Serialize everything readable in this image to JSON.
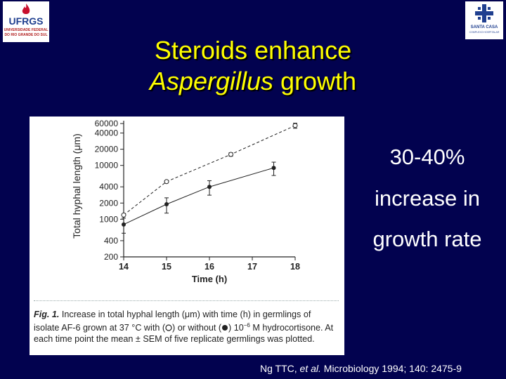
{
  "logos": {
    "left": {
      "name": "UFRGS",
      "line1": "UNIVERSIDADE FEDERAL",
      "line2": "DO RIO GRANDE DO SUL"
    },
    "right": {
      "name": "SANTA CASA",
      "sub": "COMPLEXO HOSPITALAR"
    }
  },
  "title": {
    "line1": "Steroids enhance",
    "line2_italic": "Aspergillus",
    "line2_rest": " growth"
  },
  "side_text": [
    "30-40%",
    "increase in",
    "growth rate"
  ],
  "citation": {
    "authors": "Ng TTC, ",
    "etal": "et al.",
    "rest": " Microbiology 1994; 140: 2475-9"
  },
  "caption": {
    "fig_label": "Fig. 1.",
    "text1": " Increase in total hyphal length (μm) with time (h) in germlings of isolate AF-6 grown at 37 °C with (",
    "text2": ") or without (",
    "text3": ") 10",
    "exp": "−6",
    "text4": " M hydrocortisone. At each time point the mean ± SEM of five replicate germlings was plotted."
  },
  "chart_data": {
    "type": "line",
    "xlabel": "Time (h)",
    "ylabel": "Total hyphal length (μm)",
    "xlim": [
      14,
      18
    ],
    "x_ticks": [
      "14",
      "15",
      "16",
      "17",
      "18"
    ],
    "y_scale": "log",
    "ylim": [
      200,
      60000
    ],
    "y_ticks": [
      {
        "value": 200,
        "label": "200"
      },
      {
        "value": 400,
        "label": "400"
      },
      {
        "value": 1000,
        "label": "1000"
      },
      {
        "value": 2000,
        "label": "2000"
      },
      {
        "value": 4000,
        "label": "4000"
      },
      {
        "value": 10000,
        "label": "10000"
      },
      {
        "value": 20000,
        "label": "20000"
      },
      {
        "value": 40000,
        "label": "40000"
      },
      {
        "value": 60000,
        "label": "60000"
      }
    ],
    "series": [
      {
        "marker": "open",
        "line": "dashed",
        "points": [
          {
            "x": 14,
            "y": 1200,
            "err": 0
          },
          {
            "x": 15,
            "y": 5000,
            "err": 0
          },
          {
            "x": 16.5,
            "y": 16000,
            "err": 1200
          },
          {
            "x": 18,
            "y": 55000,
            "err": 6000
          }
        ]
      },
      {
        "marker": "filled",
        "line": "solid",
        "points": [
          {
            "x": 14,
            "y": 800,
            "err": 250
          },
          {
            "x": 15,
            "y": 1900,
            "err": 600
          },
          {
            "x": 16,
            "y": 4000,
            "err": 1200
          },
          {
            "x": 17.5,
            "y": 9000,
            "err": 2500
          }
        ]
      }
    ]
  }
}
